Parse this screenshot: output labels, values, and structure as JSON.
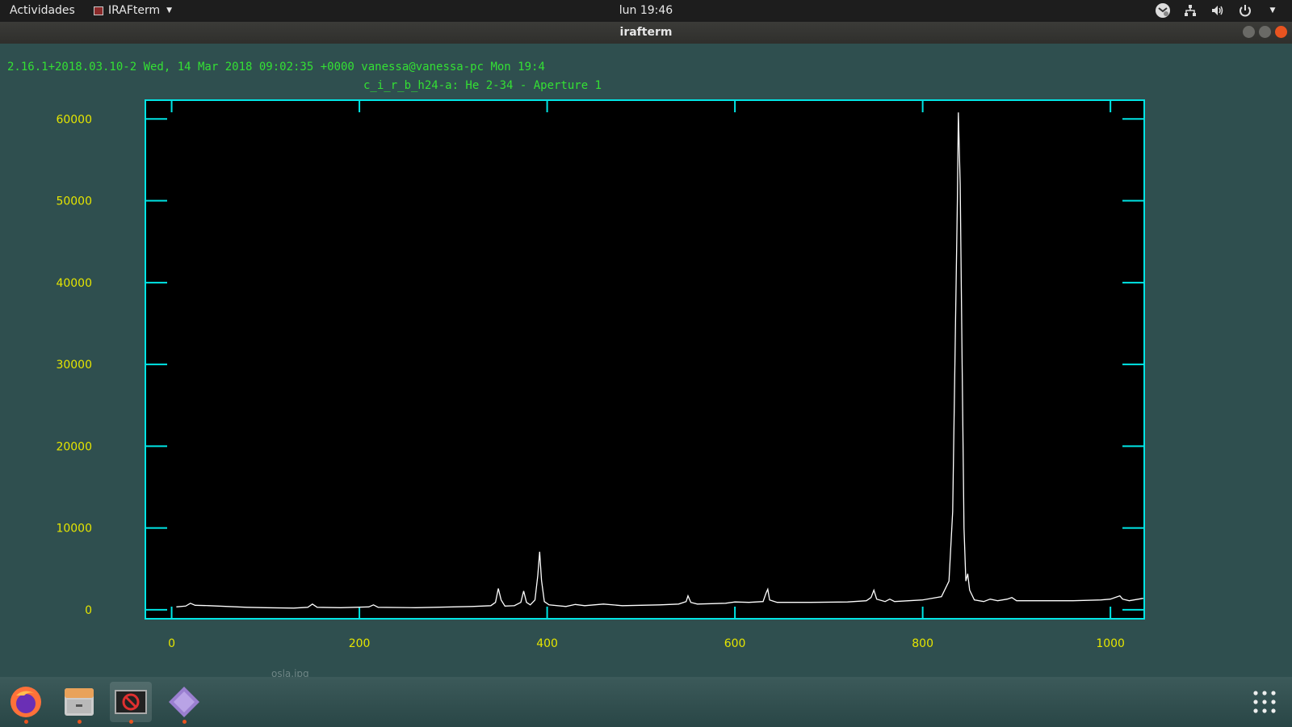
{
  "topbar": {
    "activities": "Actividades",
    "app_menu": "IRAFterm",
    "clock": "lun 19:46",
    "tray_icons": [
      "mail-notify-icon",
      "network-icon",
      "volume-icon",
      "power-icon",
      "chevron-down-icon"
    ]
  },
  "window": {
    "title": "irafterm"
  },
  "terminal": {
    "header_line": "2.16.1+2018.03.10-2 Wed, 14 Mar 2018 09:02:35 +0000 vanessa@vanessa-pc Mon 19:4",
    "plot_title": "c_i_r_b_h24-a: He 2-34 - Aperture 1"
  },
  "chart_data": {
    "type": "line",
    "title": "c_i_r_b_h24-a: He 2-34 - Aperture 1",
    "xlabel": "",
    "ylabel": "",
    "xlim": [
      -28,
      1036
    ],
    "ylim": [
      -1100,
      62300
    ],
    "x_ticks": [
      0,
      200,
      400,
      600,
      800,
      1000
    ],
    "y_ticks": [
      0,
      10000,
      20000,
      30000,
      40000,
      50000,
      60000
    ],
    "series": [
      {
        "points": [
          [
            5,
            350
          ],
          [
            15,
            450
          ],
          [
            20,
            800
          ],
          [
            25,
            550
          ],
          [
            40,
            500
          ],
          [
            60,
            400
          ],
          [
            80,
            300
          ],
          [
            100,
            250
          ],
          [
            130,
            200
          ],
          [
            145,
            300
          ],
          [
            150,
            700
          ],
          [
            155,
            300
          ],
          [
            180,
            250
          ],
          [
            210,
            350
          ],
          [
            215,
            600
          ],
          [
            220,
            300
          ],
          [
            260,
            250
          ],
          [
            300,
            350
          ],
          [
            320,
            400
          ],
          [
            340,
            500
          ],
          [
            345,
            900
          ],
          [
            348,
            2600
          ],
          [
            351,
            1200
          ],
          [
            355,
            450
          ],
          [
            365,
            500
          ],
          [
            372,
            900
          ],
          [
            375,
            2300
          ],
          [
            378,
            900
          ],
          [
            382,
            600
          ],
          [
            387,
            1200
          ],
          [
            390,
            4200
          ],
          [
            392,
            7100
          ],
          [
            394,
            3600
          ],
          [
            397,
            1000
          ],
          [
            402,
            600
          ],
          [
            420,
            400
          ],
          [
            430,
            650
          ],
          [
            440,
            500
          ],
          [
            460,
            700
          ],
          [
            480,
            500
          ],
          [
            500,
            550
          ],
          [
            520,
            600
          ],
          [
            540,
            700
          ],
          [
            548,
            1000
          ],
          [
            550,
            1700
          ],
          [
            553,
            900
          ],
          [
            560,
            700
          ],
          [
            590,
            800
          ],
          [
            600,
            950
          ],
          [
            615,
            900
          ],
          [
            630,
            1000
          ],
          [
            633,
            2000
          ],
          [
            635,
            2500
          ],
          [
            637,
            1200
          ],
          [
            645,
            900
          ],
          [
            680,
            900
          ],
          [
            720,
            950
          ],
          [
            740,
            1100
          ],
          [
            745,
            1500
          ],
          [
            748,
            2400
          ],
          [
            751,
            1300
          ],
          [
            760,
            1000
          ],
          [
            765,
            1300
          ],
          [
            770,
            1000
          ],
          [
            800,
            1200
          ],
          [
            820,
            1600
          ],
          [
            828,
            3500
          ],
          [
            832,
            12000
          ],
          [
            835,
            35000
          ],
          [
            837,
            50000
          ],
          [
            838,
            60800
          ],
          [
            840,
            52000
          ],
          [
            842,
            30000
          ],
          [
            844,
            10000
          ],
          [
            846,
            3500
          ],
          [
            848,
            4400
          ],
          [
            850,
            2400
          ],
          [
            855,
            1200
          ],
          [
            865,
            1000
          ],
          [
            872,
            1300
          ],
          [
            880,
            1100
          ],
          [
            890,
            1300
          ],
          [
            895,
            1500
          ],
          [
            900,
            1100
          ],
          [
            930,
            1100
          ],
          [
            960,
            1100
          ],
          [
            990,
            1200
          ],
          [
            1000,
            1300
          ],
          [
            1010,
            1700
          ],
          [
            1013,
            1300
          ],
          [
            1020,
            1100
          ],
          [
            1035,
            1400
          ]
        ]
      }
    ],
    "colors": {
      "axes": "#00e5e5",
      "tick_labels": "#e5e500",
      "line": "#ffffff",
      "plot_background": "#000000"
    }
  },
  "dock": {
    "items": [
      {
        "name": "firefox-icon"
      },
      {
        "name": "files-icon"
      },
      {
        "name": "irafterm-icon"
      },
      {
        "name": "pdf-viewer-icon"
      }
    ],
    "desk_label": "osla.jpg",
    "apps_icon": "show-apps-icon"
  }
}
